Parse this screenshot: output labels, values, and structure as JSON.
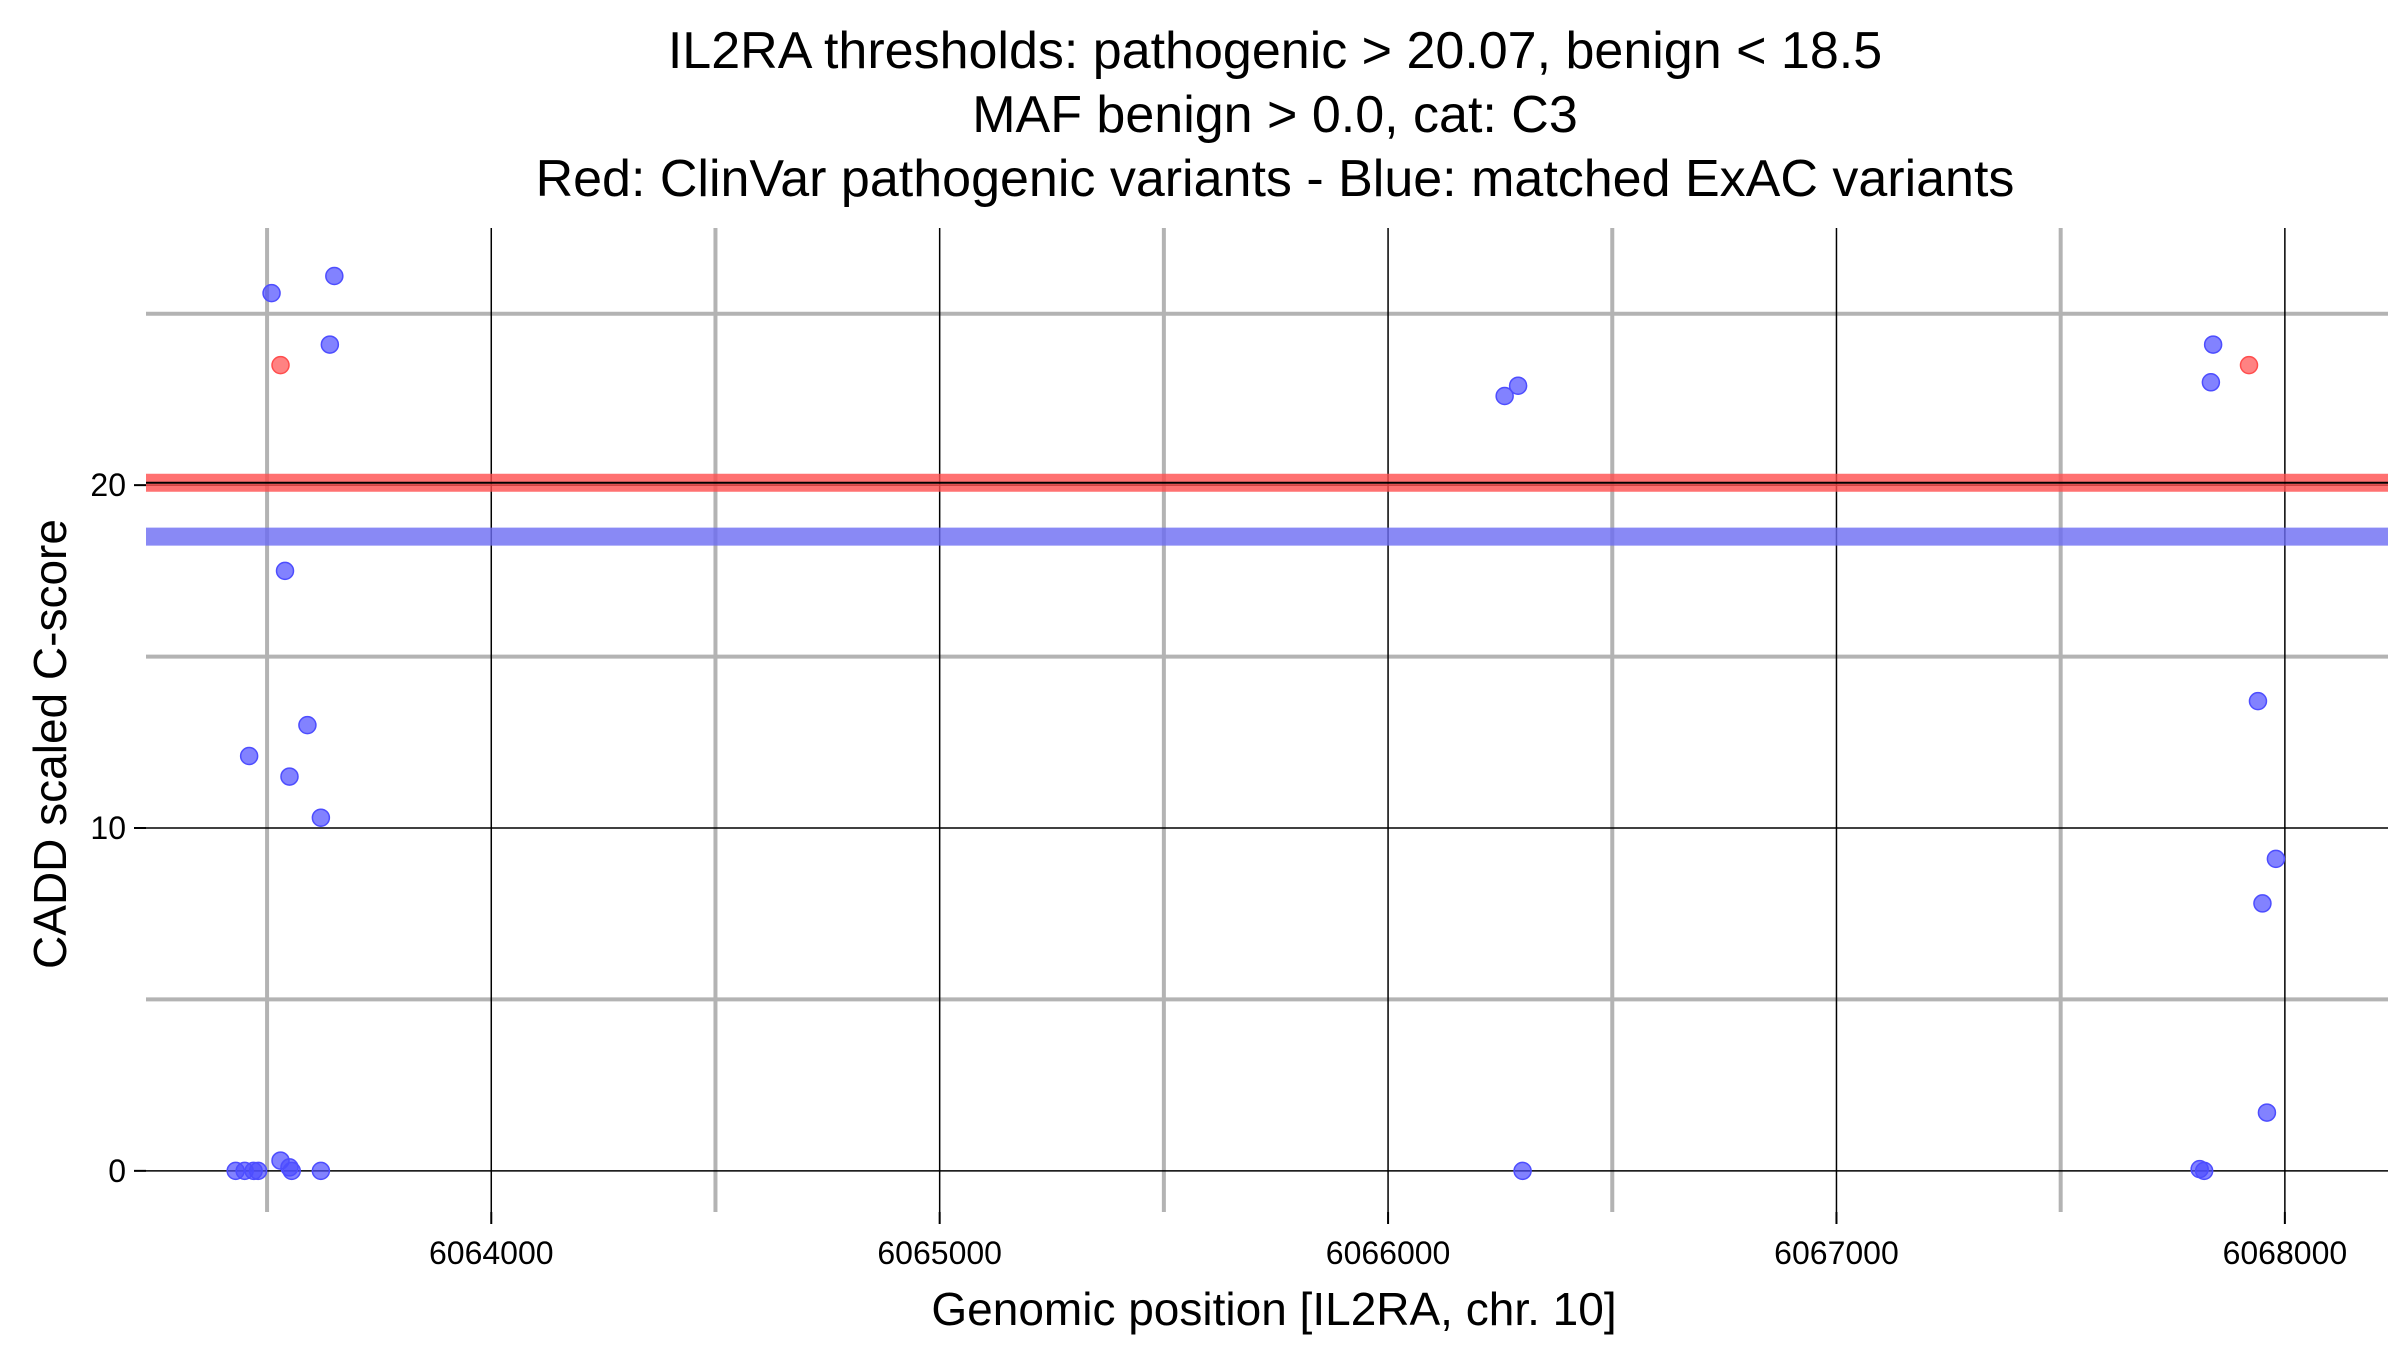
{
  "chart_data": {
    "type": "scatter",
    "title": [
      "IL2RA thresholds: pathogenic > 20.07, benign < 18.5",
      "MAF benign > 0.0, cat: C3",
      "Red: ClinVar pathogenic variants - Blue: matched ExAC variants"
    ],
    "xlabel": "Genomic position [IL2RA, chr. 10]",
    "ylabel": "CADD scaled C-score",
    "xlim": [
      6063230,
      6068230
    ],
    "ylim": [
      -1.2,
      27.5
    ],
    "x_ticks": [
      6064000,
      6065000,
      6066000,
      6067000,
      6068000
    ],
    "x_tick_labels": [
      "6064000",
      "6065000",
      "6066000",
      "6067000",
      "6068000"
    ],
    "y_ticks": [
      0,
      10,
      20
    ],
    "y_tick_labels": [
      "0",
      "10",
      "20"
    ],
    "x_minor_grid": [
      6063500,
      6064500,
      6065500,
      6066500,
      6067500
    ],
    "y_minor_grid": [
      5,
      15,
      25
    ],
    "grid": true,
    "thresholds": [
      {
        "name": "pathogenic",
        "value": 20.07,
        "color": "#ff4d4d"
      },
      {
        "name": "benign",
        "value": 18.5,
        "color": "#6b6bf2"
      }
    ],
    "series": [
      {
        "color": "#ff4d4d",
        "points": [
          {
            "x": 6063530,
            "y": 23.5
          },
          {
            "x": 6067920,
            "y": 23.5
          }
        ]
      },
      {
        "color": "#4d4dff",
        "points": [
          {
            "x": 6063510,
            "y": 25.6
          },
          {
            "x": 6063650,
            "y": 26.1
          },
          {
            "x": 6063640,
            "y": 24.1
          },
          {
            "x": 6063540,
            "y": 17.5
          },
          {
            "x": 6063590,
            "y": 13.0
          },
          {
            "x": 6063460,
            "y": 12.1
          },
          {
            "x": 6063550,
            "y": 11.5
          },
          {
            "x": 6063620,
            "y": 10.3
          },
          {
            "x": 6063530,
            "y": 0.3
          },
          {
            "x": 6063550,
            "y": 0.1
          },
          {
            "x": 6063430,
            "y": 0.0
          },
          {
            "x": 6063450,
            "y": 0.0
          },
          {
            "x": 6063470,
            "y": 0.0
          },
          {
            "x": 6063480,
            "y": 0.0
          },
          {
            "x": 6063555,
            "y": 0.0
          },
          {
            "x": 6063620,
            "y": 0.0
          },
          {
            "x": 6066260,
            "y": 22.6
          },
          {
            "x": 6066290,
            "y": 22.9
          },
          {
            "x": 6066300,
            "y": 0.0
          },
          {
            "x": 6067840,
            "y": 24.1
          },
          {
            "x": 6067835,
            "y": 23.0
          },
          {
            "x": 6067810,
            "y": 0.05
          },
          {
            "x": 6067820,
            "y": 0.0
          },
          {
            "x": 6067940,
            "y": 13.7
          },
          {
            "x": 6067980,
            "y": 9.1
          },
          {
            "x": 6067950,
            "y": 7.8
          },
          {
            "x": 6067960,
            "y": 1.7
          }
        ]
      }
    ]
  }
}
